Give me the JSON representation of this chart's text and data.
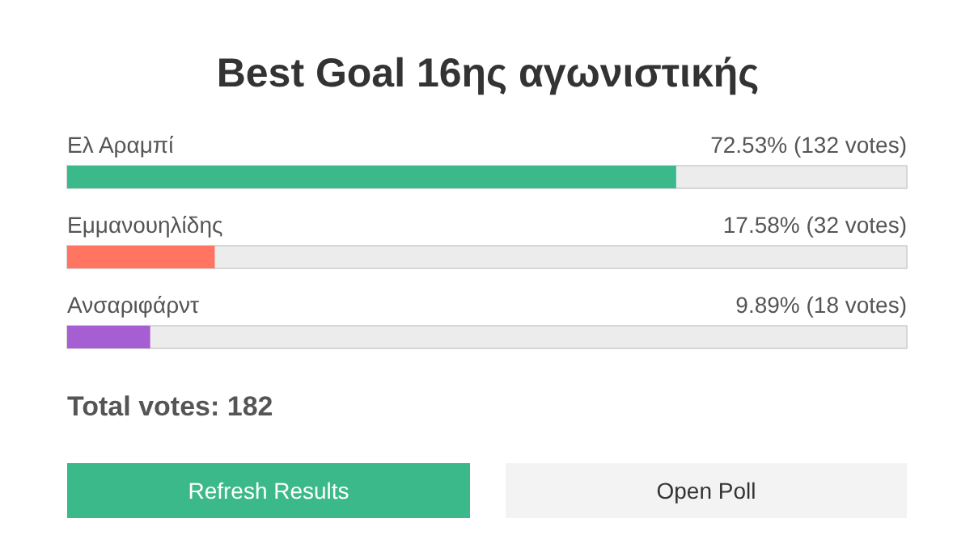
{
  "chart_data": {
    "type": "bar",
    "orientation": "horizontal",
    "title": "Best Goal 16ης αγωνιστικής",
    "categories": [
      "Ελ Αραμπί",
      "Εμμανουηλίδης",
      "Ανσαριφάρντ"
    ],
    "values": [
      72.53,
      17.58,
      9.89
    ],
    "colors": [
      "#3cb98b",
      "#ff7562",
      "#a55fd2"
    ],
    "value_labels": [
      "72.53% (132 votes)",
      "17.58% (32 votes)",
      "9.89% (18 votes)"
    ],
    "xlim": [
      0,
      100
    ],
    "tick_labels": false,
    "grid": false,
    "annotations": [
      "Total votes: 182",
      "Refresh Results",
      "Open Poll"
    ]
  }
}
